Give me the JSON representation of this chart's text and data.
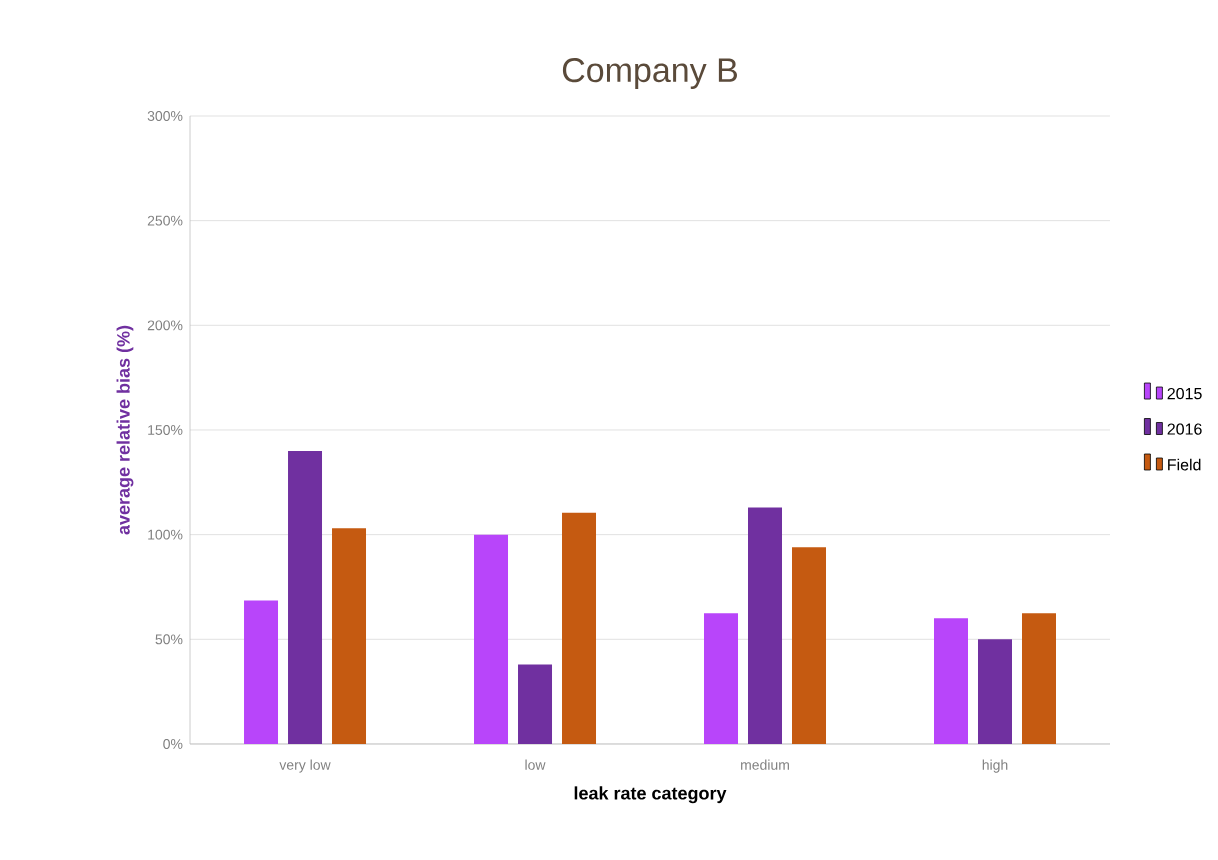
{
  "chart_data": {
    "type": "bar",
    "title": "Company B",
    "xlabel": "leak rate category",
    "ylabel": "average relative bias (%)",
    "categories": [
      "very low",
      "low",
      "medium",
      "high"
    ],
    "series": [
      {
        "name": "2015",
        "color": "#b845fa",
        "values": [
          68.5,
          100,
          62.5,
          60
        ]
      },
      {
        "name": "2016",
        "color": "#7030a0",
        "values": [
          140,
          38,
          113,
          50
        ]
      },
      {
        "name": "Field",
        "color": "#c55a11",
        "values": [
          103,
          110.5,
          94,
          62.5
        ]
      }
    ],
    "ylim": [
      0,
      300
    ],
    "yticks": [
      {
        "value": 0,
        "label": "0%"
      },
      {
        "value": 50,
        "label": "50%"
      },
      {
        "value": 100,
        "label": "100%"
      },
      {
        "value": 150,
        "label": "150%"
      },
      {
        "value": 200,
        "label": "200%"
      },
      {
        "value": 250,
        "label": "250%"
      },
      {
        "value": 300,
        "label": "300%"
      }
    ],
    "grid": "y",
    "legend": "right"
  }
}
